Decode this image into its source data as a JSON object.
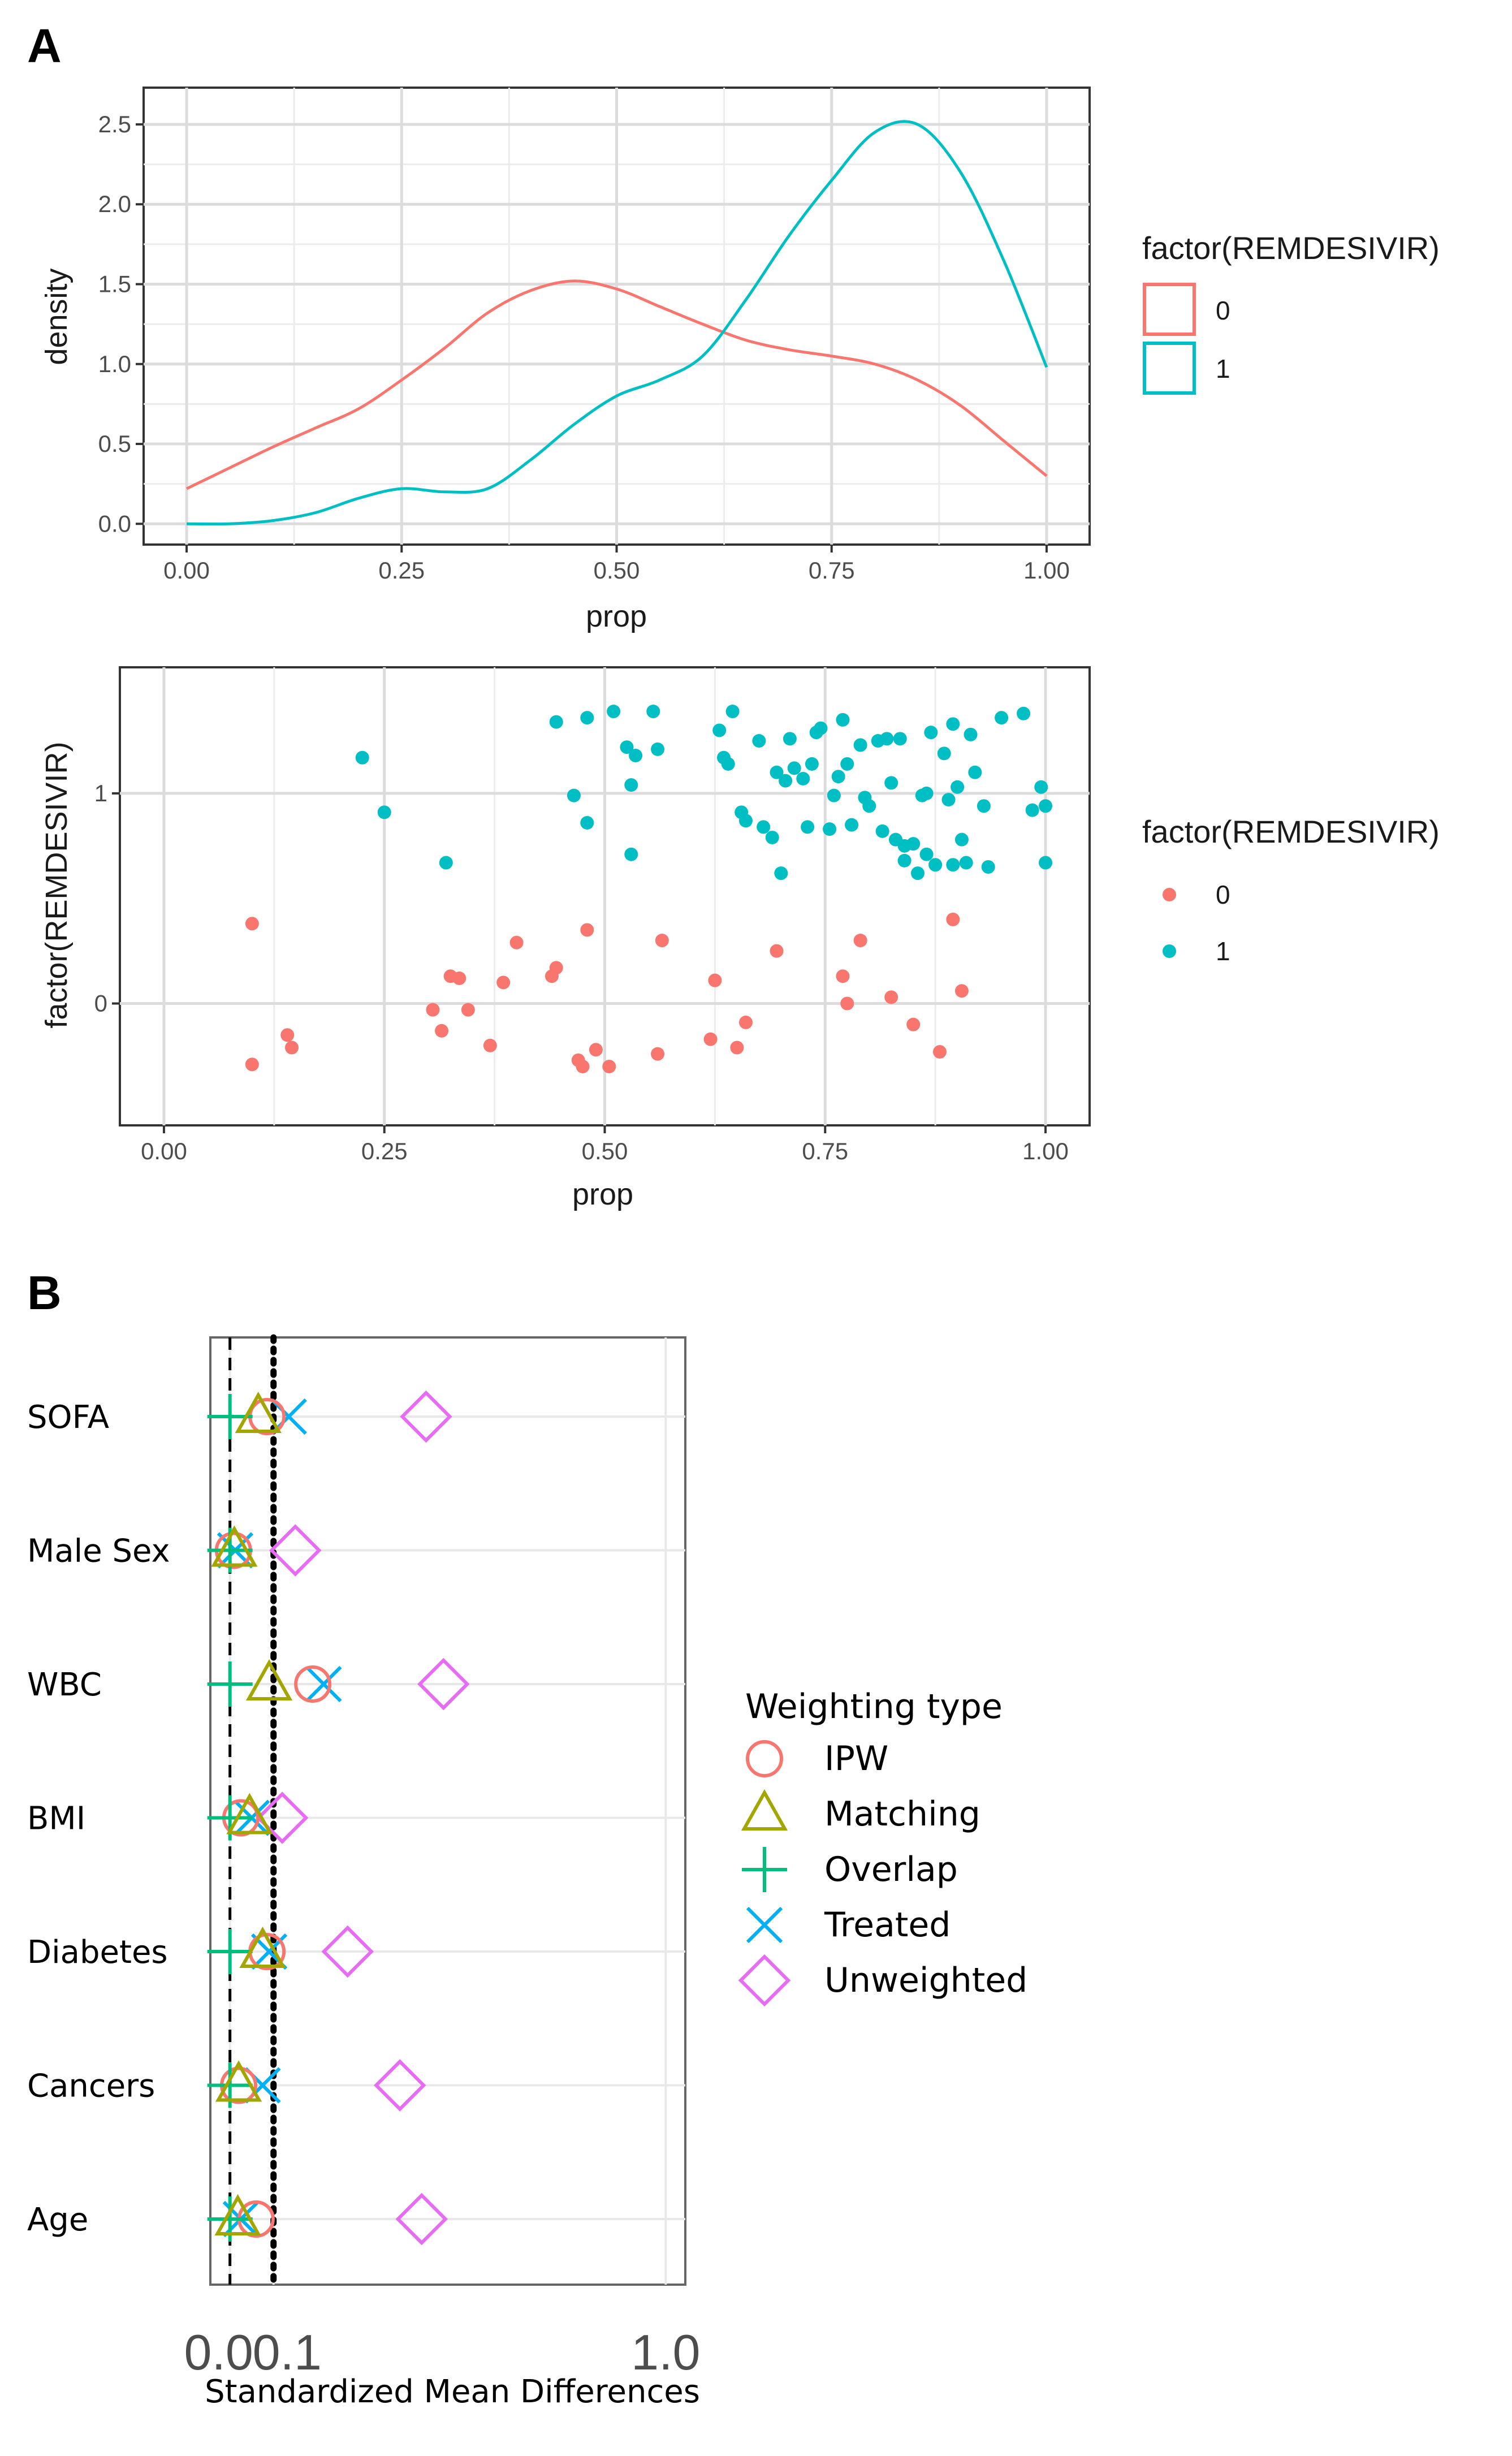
{
  "panels": {
    "a": {
      "letter": "A"
    },
    "b": {
      "letter": "B"
    }
  },
  "colors": {
    "group0": "#F8766D",
    "group1": "#00BFC4",
    "IPW": "#F8766D",
    "Matching": "#A3A500",
    "Overlap": "#00BF7D",
    "Treated": "#00B0F6",
    "Unweighted": "#E76BF3"
  },
  "chart_data": [
    {
      "id": "density",
      "type": "line",
      "title": "",
      "xlabel": "prop",
      "ylabel": "density",
      "xlim": [
        0,
        1
      ],
      "ylim": [
        0,
        2.6
      ],
      "x_ticks": [
        0,
        0.25,
        0.5,
        0.75,
        1.0
      ],
      "x_tick_labels": [
        "0.00",
        "0.25",
        "0.50",
        "0.75",
        "1.00"
      ],
      "y_ticks": [
        0,
        0.5,
        1.0,
        1.5,
        2.0,
        2.5
      ],
      "y_tick_labels": [
        "0.0",
        "0.5",
        "1.0",
        "1.5",
        "2.0",
        "2.5"
      ],
      "grid": true,
      "legend": {
        "title": "factor(REMDESIVIR)",
        "position": "right",
        "entries": [
          "0",
          "1"
        ]
      },
      "series": [
        {
          "name": "0",
          "x": [
            0,
            0.05,
            0.1,
            0.15,
            0.2,
            0.25,
            0.3,
            0.35,
            0.4,
            0.45,
            0.5,
            0.55,
            0.6,
            0.65,
            0.7,
            0.75,
            0.8,
            0.85,
            0.9,
            0.95,
            1.0
          ],
          "y": [
            0.22,
            0.35,
            0.48,
            0.6,
            0.72,
            0.9,
            1.1,
            1.32,
            1.46,
            1.52,
            1.47,
            1.36,
            1.25,
            1.15,
            1.09,
            1.05,
            1.0,
            0.9,
            0.74,
            0.52,
            0.3
          ]
        },
        {
          "name": "1",
          "x": [
            0,
            0.05,
            0.1,
            0.15,
            0.2,
            0.25,
            0.3,
            0.35,
            0.4,
            0.45,
            0.5,
            0.55,
            0.6,
            0.65,
            0.7,
            0.75,
            0.8,
            0.85,
            0.9,
            0.95,
            1.0
          ],
          "y": [
            0.0,
            0.0,
            0.02,
            0.07,
            0.16,
            0.22,
            0.2,
            0.22,
            0.4,
            0.62,
            0.8,
            0.9,
            1.05,
            1.4,
            1.8,
            2.15,
            2.45,
            2.5,
            2.2,
            1.65,
            0.98
          ]
        }
      ]
    },
    {
      "id": "jitter",
      "type": "scatter",
      "title": "",
      "xlabel": "prop",
      "ylabel": "factor(REMDESIVIR)",
      "xlim": [
        0,
        1
      ],
      "ylim": [
        -0.58,
        1.6
      ],
      "x_ticks": [
        0,
        0.25,
        0.5,
        0.75,
        1.0
      ],
      "x_tick_labels": [
        "0.00",
        "0.25",
        "0.50",
        "0.75",
        "1.00"
      ],
      "y_ticks": [
        0,
        1
      ],
      "y_tick_labels": [
        "0",
        "1"
      ],
      "grid": true,
      "legend": {
        "title": "factor(REMDESIVIR)",
        "position": "right",
        "entries": [
          "0",
          "1"
        ]
      },
      "series": [
        {
          "name": "0",
          "points": [
            [
              0.1,
              0.38
            ],
            [
              0.1,
              -0.29
            ],
            [
              0.14,
              -0.15
            ],
            [
              0.145,
              -0.21
            ],
            [
              0.305,
              -0.03
            ],
            [
              0.315,
              -0.13
            ],
            [
              0.325,
              0.13
            ],
            [
              0.335,
              0.12
            ],
            [
              0.345,
              -0.03
            ],
            [
              0.37,
              -0.2
            ],
            [
              0.385,
              0.1
            ],
            [
              0.4,
              0.29
            ],
            [
              0.44,
              0.13
            ],
            [
              0.445,
              0.17
            ],
            [
              0.47,
              -0.27
            ],
            [
              0.475,
              -0.3
            ],
            [
              0.48,
              0.35
            ],
            [
              0.49,
              -0.22
            ],
            [
              0.505,
              -0.3
            ],
            [
              0.56,
              -0.24
            ],
            [
              0.565,
              0.3
            ],
            [
              0.62,
              -0.17
            ],
            [
              0.625,
              0.11
            ],
            [
              0.65,
              -0.21
            ],
            [
              0.66,
              -0.09
            ],
            [
              0.695,
              0.25
            ],
            [
              0.77,
              0.13
            ],
            [
              0.775,
              0.0
            ],
            [
              0.79,
              0.3
            ],
            [
              0.825,
              0.03
            ],
            [
              0.85,
              -0.1
            ],
            [
              0.88,
              -0.23
            ],
            [
              0.895,
              0.4
            ],
            [
              0.905,
              0.06
            ]
          ]
        },
        {
          "name": "1",
          "points": [
            [
              0.225,
              1.17
            ],
            [
              0.25,
              0.91
            ],
            [
              0.32,
              0.67
            ],
            [
              0.445,
              1.34
            ],
            [
              0.465,
              0.99
            ],
            [
              0.48,
              1.36
            ],
            [
              0.48,
              0.86
            ],
            [
              0.51,
              1.39
            ],
            [
              0.525,
              1.22
            ],
            [
              0.53,
              1.04
            ],
            [
              0.53,
              0.71
            ],
            [
              0.535,
              1.18
            ],
            [
              0.555,
              1.39
            ],
            [
              0.56,
              1.21
            ],
            [
              0.63,
              1.3
            ],
            [
              0.635,
              1.17
            ],
            [
              0.64,
              1.14
            ],
            [
              0.645,
              1.39
            ],
            [
              0.655,
              0.91
            ],
            [
              0.66,
              0.87
            ],
            [
              0.675,
              1.25
            ],
            [
              0.68,
              0.84
            ],
            [
              0.69,
              0.79
            ],
            [
              0.695,
              1.1
            ],
            [
              0.7,
              0.62
            ],
            [
              0.705,
              1.06
            ],
            [
              0.71,
              1.26
            ],
            [
              0.715,
              1.12
            ],
            [
              0.725,
              1.07
            ],
            [
              0.73,
              0.84
            ],
            [
              0.735,
              1.14
            ],
            [
              0.74,
              1.29
            ],
            [
              0.745,
              1.31
            ],
            [
              0.755,
              0.83
            ],
            [
              0.76,
              0.99
            ],
            [
              0.765,
              1.08
            ],
            [
              0.77,
              1.35
            ],
            [
              0.775,
              1.14
            ],
            [
              0.78,
              0.85
            ],
            [
              0.79,
              1.23
            ],
            [
              0.795,
              0.98
            ],
            [
              0.8,
              0.94
            ],
            [
              0.81,
              1.25
            ],
            [
              0.815,
              0.82
            ],
            [
              0.82,
              1.26
            ],
            [
              0.825,
              1.05
            ],
            [
              0.83,
              0.78
            ],
            [
              0.835,
              1.26
            ],
            [
              0.84,
              0.75
            ],
            [
              0.84,
              0.68
            ],
            [
              0.85,
              0.76
            ],
            [
              0.855,
              0.62
            ],
            [
              0.86,
              0.99
            ],
            [
              0.865,
              1.0
            ],
            [
              0.865,
              0.71
            ],
            [
              0.87,
              1.29
            ],
            [
              0.875,
              0.66
            ],
            [
              0.885,
              1.19
            ],
            [
              0.89,
              0.97
            ],
            [
              0.895,
              1.33
            ],
            [
              0.895,
              0.66
            ],
            [
              0.9,
              1.03
            ],
            [
              0.905,
              0.78
            ],
            [
              0.91,
              0.67
            ],
            [
              0.915,
              1.28
            ],
            [
              0.92,
              1.1
            ],
            [
              0.93,
              0.94
            ],
            [
              0.935,
              0.65
            ],
            [
              0.95,
              1.36
            ],
            [
              0.975,
              1.38
            ],
            [
              0.985,
              0.92
            ],
            [
              0.995,
              1.03
            ],
            [
              1.0,
              0.94
            ],
            [
              1.0,
              0.67
            ]
          ]
        }
      ]
    },
    {
      "id": "love-plot",
      "type": "scatter",
      "title": "",
      "xlabel": "Standardized Mean Differences",
      "ylabel": "",
      "xlim": [
        -0.045,
        1.045
      ],
      "x_ticks": [
        0,
        0.1,
        1.0
      ],
      "x_tick_labels": [
        "0.0",
        "0.1",
        "1.0"
      ],
      "reference_lines": [
        {
          "x": 0,
          "style": "dashed"
        },
        {
          "x": 0.1,
          "style": "dotted"
        }
      ],
      "grid": true,
      "categories": [
        "SOFA",
        "Male Sex",
        "WBC",
        "BMI",
        "Diabetes",
        "Cancers",
        "Age"
      ],
      "legend": {
        "title": "Weighting type",
        "position": "right",
        "entries": [
          "IPW",
          "Matching",
          "Overlap",
          "Treated",
          "Unweighted"
        ]
      },
      "series": [
        {
          "name": "IPW",
          "marker": "circle",
          "values": [
            0.085,
            0.008,
            0.19,
            0.025,
            0.085,
            0.02,
            0.06
          ]
        },
        {
          "name": "Matching",
          "marker": "triangle",
          "values": [
            0.065,
            0.01,
            0.09,
            0.045,
            0.075,
            0.02,
            0.018
          ]
        },
        {
          "name": "Overlap",
          "marker": "plus",
          "values": [
            0.0,
            0.0,
            0.0,
            0.0,
            0.0,
            0.0,
            0.0
          ]
        },
        {
          "name": "Treated",
          "marker": "x",
          "values": [
            0.135,
            0.012,
            0.215,
            0.05,
            0.09,
            0.075,
            0.025
          ]
        },
        {
          "name": "Unweighted",
          "marker": "diamond",
          "values": [
            0.45,
            0.15,
            0.49,
            0.12,
            0.27,
            0.39,
            0.44
          ]
        }
      ]
    }
  ]
}
